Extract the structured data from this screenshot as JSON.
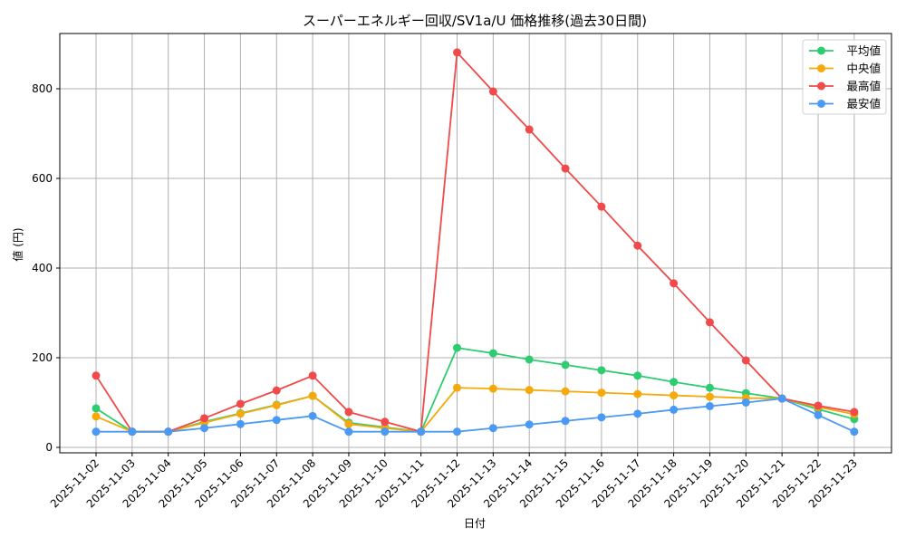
{
  "chart_data": {
    "type": "line",
    "title": "スーパーエネルギー回収/SV1a/U 価格推移(過去30日間)",
    "xlabel": "日付",
    "ylabel": "値 (円)",
    "ylim": [
      0,
      920
    ],
    "yticks": [
      0,
      200,
      400,
      600,
      800
    ],
    "grid": true,
    "legend_position": "upper right",
    "categories": [
      "2025-11-02",
      "2025-11-03",
      "2025-11-04",
      "2025-11-05",
      "2025-11-06",
      "2025-11-07",
      "2025-11-08",
      "2025-11-09",
      "2025-11-10",
      "2025-11-11",
      "2025-11-12",
      "2025-11-13",
      "2025-11-14",
      "2025-11-15",
      "2025-11-16",
      "2025-11-17",
      "2025-11-18",
      "2025-11-19",
      "2025-11-20",
      "2025-11-21",
      "2025-11-22",
      "2025-11-23"
    ],
    "series": [
      {
        "name": "平均値",
        "color": "#2ecc71",
        "values": [
          87,
          35,
          35,
          57,
          76,
          95,
          115,
          55,
          45,
          35,
          222,
          210,
          196,
          184,
          172,
          160,
          146,
          133,
          121,
          109,
          85,
          63
        ]
      },
      {
        "name": "中央値",
        "color": "#f5a90a",
        "values": [
          69,
          35,
          35,
          55,
          75,
          94,
          115,
          52,
          43,
          35,
          133,
          131,
          128,
          125,
          122,
          119,
          116,
          113,
          110,
          109,
          90,
          74
        ]
      },
      {
        "name": "最高値",
        "color": "#f04a4a",
        "values": [
          160,
          35,
          35,
          65,
          97,
          127,
          160,
          79,
          57,
          35,
          881,
          794,
          709,
          622,
          537,
          450,
          366,
          279,
          194,
          109,
          93,
          79
        ]
      },
      {
        "name": "最安値",
        "color": "#4a9af5",
        "values": [
          35,
          35,
          35,
          43,
          52,
          61,
          70,
          35,
          35,
          35,
          35,
          43,
          51,
          59,
          67,
          75,
          84,
          92,
          100,
          109,
          72,
          35
        ]
      }
    ]
  }
}
